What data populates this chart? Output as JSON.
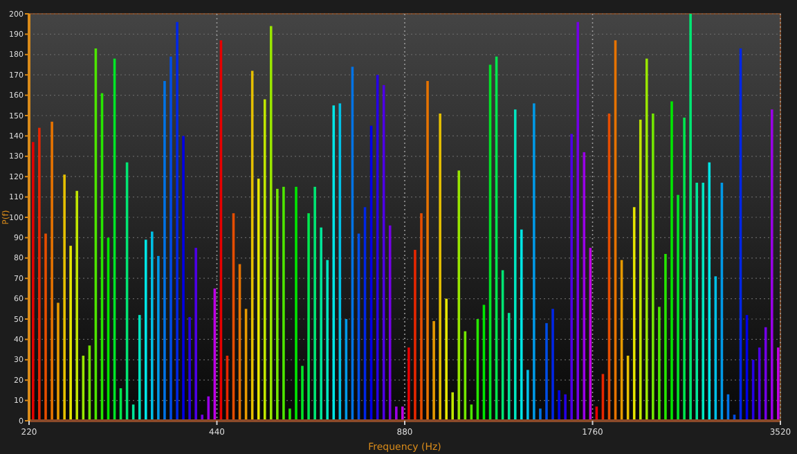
{
  "chart_data": {
    "type": "bar",
    "xlabel": "Frequency (Hz)",
    "ylabel": "P(f)",
    "log": "x",
    "grid": true,
    "xlim": [
      220,
      3520
    ],
    "xticks": [
      220,
      440,
      880,
      1760,
      3520
    ],
    "ylim": [
      0,
      200
    ],
    "yticks": [
      0,
      10,
      20,
      30,
      40,
      50,
      60,
      70,
      80,
      90,
      100,
      110,
      120,
      130,
      140,
      150,
      160,
      170,
      180,
      190,
      200
    ],
    "x": [
      223.3,
      228.5,
      233.9,
      239.4,
      244.9,
      250.7,
      256.5,
      262.5,
      268.7,
      275.0,
      281.4,
      288.0,
      294.7,
      301.6,
      308.6,
      315.8,
      323.2,
      330.8,
      338.5,
      346.4,
      354.5,
      362.8,
      371.3,
      380.0,
      388.8,
      397.9,
      407.2,
      416.7,
      426.5,
      436.5,
      446.7,
      457.1,
      467.8,
      478.7,
      489.9,
      501.4,
      513.1,
      525.1,
      537.3,
      549.9,
      562.8,
      575.9,
      589.4,
      603.1,
      617.2,
      631.7,
      646.4,
      661.5,
      677.0,
      692.8,
      709.0,
      725.6,
      742.6,
      759.9,
      777.7,
      795.9,
      814.5,
      833.5,
      853.0,
      872.9,
      893.3,
      914.2,
      935.6,
      957.4,
      979.8,
      1002.7,
      1026.2,
      1050.1,
      1074.7,
      1099.8,
      1125.5,
      1151.8,
      1178.7,
      1206.3,
      1234.5,
      1263.3,
      1292.9,
      1323.1,
      1354.0,
      1385.7,
      1418.0,
      1451.2,
      1485.1,
      1519.8,
      1555.4,
      1591.7,
      1628.9,
      1667.0,
      1706.0,
      1745.8,
      1786.6,
      1828.4,
      1871.1,
      1914.9,
      1959.6,
      2005.4,
      2052.3,
      2100.3,
      2149.4,
      2199.6,
      2251.0,
      2303.6,
      2357.5,
      2412.6,
      2469.0,
      2526.7,
      2585.8,
      2646.2,
      2708.0,
      2771.3,
      2836.1,
      2902.4,
      2970.2,
      3039.7,
      3110.7,
      3183.4,
      3257.8,
      3333.9,
      3411.9,
      3491.6
    ],
    "values": [
      137,
      144,
      92,
      147,
      58,
      121,
      86,
      113,
      32,
      37,
      183,
      161,
      90,
      178,
      16,
      127,
      8,
      52,
      89,
      93,
      81,
      167,
      179,
      196,
      140,
      51,
      85,
      3,
      12,
      65,
      187,
      32,
      102,
      77,
      55,
      172,
      119,
      158,
      194,
      114,
      115,
      6,
      115,
      27,
      102,
      115,
      95,
      79,
      155,
      156,
      50,
      174,
      92,
      105,
      145,
      170,
      165,
      96,
      7,
      7,
      36,
      84,
      102,
      167,
      49,
      151,
      60,
      14,
      123,
      44,
      8,
      50,
      57,
      175,
      179,
      74,
      53,
      153,
      94,
      25,
      156,
      6,
      48,
      55,
      15,
      13,
      141,
      196,
      132,
      85,
      7,
      23,
      151,
      187,
      79,
      32,
      105,
      148,
      178,
      151,
      56,
      82,
      157,
      111,
      149,
      200,
      117,
      117,
      127,
      71,
      117,
      13,
      3,
      183,
      52,
      30,
      36,
      46,
      153,
      36
    ],
    "colors": [
      "#e60000",
      "#e62600",
      "#e64d00",
      "#e67300",
      "#e69900",
      "#e6c000",
      "#e6e600",
      "#c0e600",
      "#99e600",
      "#73e600",
      "#4de600",
      "#26e600",
      "#00e600",
      "#00e626",
      "#00e64d",
      "#00e673",
      "#00e699",
      "#00e6c0",
      "#00e6e6",
      "#00c0e6",
      "#0099e6",
      "#0073e6",
      "#004de6",
      "#0026e6",
      "#0000e6",
      "#2600e6",
      "#4d00e6",
      "#7300e6",
      "#9900e6",
      "#c000e6",
      "#e60000",
      "#e62600",
      "#e64d00",
      "#e67300",
      "#e69900",
      "#e6c000",
      "#e6e600",
      "#c0e600",
      "#99e600",
      "#73e600",
      "#4de600",
      "#26e600",
      "#00e600",
      "#00e626",
      "#00e64d",
      "#00e673",
      "#00e699",
      "#00e6c0",
      "#00e6e6",
      "#00c0e6",
      "#0099e6",
      "#0073e6",
      "#004de6",
      "#0026e6",
      "#0000e6",
      "#2600e6",
      "#4d00e6",
      "#7300e6",
      "#9900e6",
      "#c000e6",
      "#e60000",
      "#e62600",
      "#e64d00",
      "#e67300",
      "#e69900",
      "#e6c000",
      "#e6e600",
      "#c0e600",
      "#99e600",
      "#73e600",
      "#4de600",
      "#26e600",
      "#00e600",
      "#00e626",
      "#00e64d",
      "#00e673",
      "#00e699",
      "#00e6c0",
      "#00e6e6",
      "#00c0e6",
      "#0099e6",
      "#0073e6",
      "#004de6",
      "#0026e6",
      "#0000e6",
      "#2600e6",
      "#4d00e6",
      "#7300e6",
      "#9900e6",
      "#c000e6",
      "#e60000",
      "#e62600",
      "#e64d00",
      "#e67300",
      "#e69900",
      "#e6c000",
      "#e6e600",
      "#c0e600",
      "#99e600",
      "#73e600",
      "#4de600",
      "#26e600",
      "#00e600",
      "#00e626",
      "#00e64d",
      "#00e673",
      "#00e699",
      "#00e6c0",
      "#00e6e6",
      "#00c0e6",
      "#0099e6",
      "#0073e6",
      "#004de6",
      "#0026e6",
      "#0000e6",
      "#2600e6",
      "#4d00e6",
      "#7300e6",
      "#9900e6",
      "#c000e6"
    ]
  }
}
